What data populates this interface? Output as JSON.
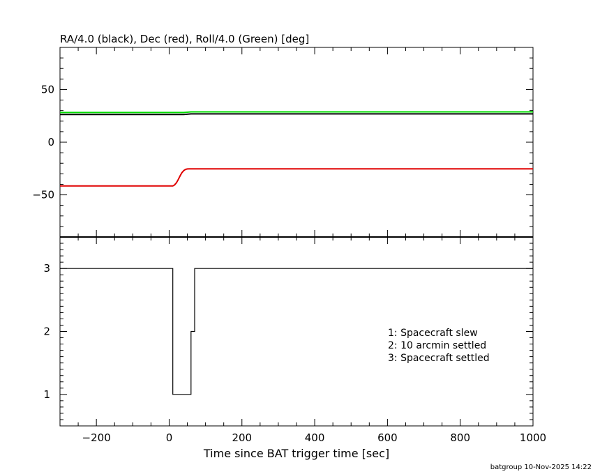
{
  "footer": "batgroup 10-Nov-2025 14:22",
  "chart_data": [
    {
      "type": "line",
      "title": "RA/4.0 (black), Dec (red), Roll/4.0 (Green) [deg]",
      "xlim": [
        -300,
        1000
      ],
      "ylim": [
        -90,
        90
      ],
      "y_tick_labels": [
        50,
        0,
        -50
      ],
      "grid": false,
      "series": [
        {
          "name": "RA/4.0 (black)",
          "color": "#000000",
          "x": [
            -300,
            40,
            60,
            1000
          ],
          "y": [
            26.3,
            26.3,
            26.9,
            26.9
          ]
        },
        {
          "name": "Dec (red)",
          "color": "#e00000",
          "x": [
            -300,
            10,
            15,
            20,
            25,
            30,
            35,
            40,
            45,
            50,
            55,
            60,
            1000
          ],
          "y": [
            -41.5,
            -41.5,
            -40.5,
            -38.5,
            -35.5,
            -32,
            -29,
            -27,
            -25.8,
            -25.4,
            -25.3,
            -25.3,
            -25.3
          ]
        },
        {
          "name": "Roll/4.0 (Green)",
          "color": "#00dd00",
          "x": [
            -300,
            40,
            60,
            1000
          ],
          "y": [
            28.2,
            28.2,
            28.8,
            28.8
          ]
        }
      ]
    },
    {
      "type": "line",
      "xlabel": "Time since BAT trigger time [sec]",
      "xlim": [
        -300,
        1000
      ],
      "ylim": [
        0.5,
        3.5
      ],
      "x_tick_labels": [
        -200,
        0,
        200,
        400,
        600,
        800,
        1000
      ],
      "y_tick_labels": [
        3,
        2,
        1
      ],
      "grid": false,
      "annotations": [
        "1: Spacecraft slew",
        "2: 10 arcmin settled",
        "3: Spacecraft settled"
      ],
      "series": [
        {
          "color": "#000000",
          "step": true,
          "x": [
            -300,
            10,
            10,
            60,
            60,
            70,
            70,
            1000
          ],
          "y": [
            3,
            3,
            1,
            1,
            2,
            2,
            3,
            3
          ]
        }
      ]
    }
  ]
}
